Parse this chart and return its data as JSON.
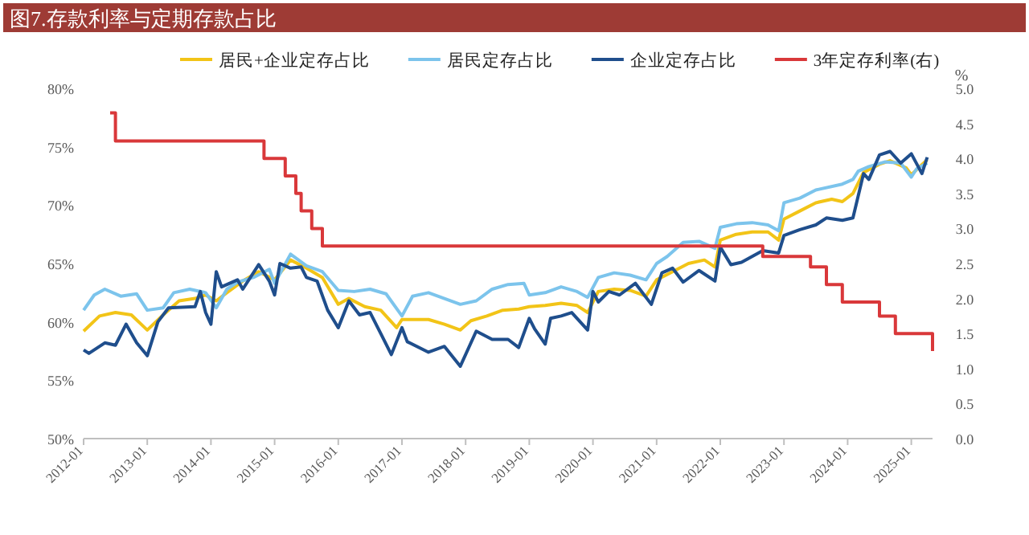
{
  "chart_data": {
    "type": "line",
    "title": "图7.存款利率与定期存款占比",
    "y2label": "%",
    "xlim": [
      "2012-01",
      "2025-05"
    ],
    "xticks": [
      "2012-01",
      "2013-01",
      "2014-01",
      "2015-01",
      "2016-01",
      "2017-01",
      "2018-01",
      "2019-01",
      "2020-01",
      "2021-01",
      "2022-01",
      "2023-01",
      "2024-01",
      "2025-01"
    ],
    "ylim": [
      50,
      80
    ],
    "yticks": [
      {
        "value": 50,
        "label": "50%"
      },
      {
        "value": 55,
        "label": "55%"
      },
      {
        "value": 60,
        "label": "60%"
      },
      {
        "value": 65,
        "label": "65%"
      },
      {
        "value": 70,
        "label": "70%"
      },
      {
        "value": 75,
        "label": "75%"
      },
      {
        "value": 80,
        "label": "80%"
      }
    ],
    "y2lim": [
      0,
      5
    ],
    "y2ticks": [
      {
        "value": 0,
        "label": "0.0"
      },
      {
        "value": 0.5,
        "label": "0.5"
      },
      {
        "value": 1,
        "label": "1.0"
      },
      {
        "value": 1.5,
        "label": "1.5"
      },
      {
        "value": 2,
        "label": "2.0"
      },
      {
        "value": 2.5,
        "label": "2.5"
      },
      {
        "value": 3,
        "label": "3.0"
      },
      {
        "value": 3.5,
        "label": "3.5"
      },
      {
        "value": 4,
        "label": "4.0"
      },
      {
        "value": 4.5,
        "label": "4.5"
      },
      {
        "value": 5,
        "label": "5.0"
      }
    ],
    "grid": false,
    "legend": "top",
    "line_style": "solid",
    "series": [
      {
        "name": "居民+企业定存占比",
        "color": "#f2c417",
        "x": [
          "2012-01",
          "2012-04",
          "2012-07",
          "2012-10",
          "2013-01",
          "2013-04",
          "2013-07",
          "2013-10",
          "2013-12",
          "2014-02",
          "2014-04",
          "2014-07",
          "2014-10",
          "2015-01",
          "2015-04",
          "2015-07",
          "2015-10",
          "2016-01",
          "2016-03",
          "2016-06",
          "2016-09",
          "2016-12",
          "2017-01",
          "2017-06",
          "2017-09",
          "2017-12",
          "2018-02",
          "2018-05",
          "2018-08",
          "2018-11",
          "2019-01",
          "2019-04",
          "2019-07",
          "2019-10",
          "2019-12",
          "2020-02",
          "2020-05",
          "2020-08",
          "2020-11",
          "2021-01",
          "2021-04",
          "2021-07",
          "2021-10",
          "2021-12",
          "2022-01",
          "2022-04",
          "2022-07",
          "2022-10",
          "2022-12",
          "2023-01",
          "2023-04",
          "2023-07",
          "2023-10",
          "2023-12",
          "2024-02",
          "2024-04",
          "2024-07",
          "2024-09",
          "2024-12",
          "2025-01",
          "2025-04"
        ],
        "values": [
          59.2,
          60.5,
          60.8,
          60.6,
          59.3,
          60.6,
          61.8,
          62.0,
          62.3,
          61.8,
          62.5,
          63.5,
          64.3,
          63.6,
          65.3,
          64.6,
          63.8,
          61.5,
          62.0,
          61.3,
          61.0,
          59.5,
          60.2,
          60.2,
          59.8,
          59.3,
          60.1,
          60.5,
          61.0,
          61.1,
          61.3,
          61.4,
          61.6,
          61.4,
          60.8,
          62.6,
          62.8,
          62.7,
          62.2,
          63.6,
          64.3,
          65.0,
          65.3,
          64.7,
          67.0,
          67.5,
          67.7,
          67.7,
          67.0,
          68.8,
          69.5,
          70.2,
          70.5,
          70.3,
          71.0,
          72.8,
          73.5,
          73.8,
          73.2,
          72.6,
          73.9
        ]
      },
      {
        "name": "居民定存占比",
        "color": "#7cc4ec",
        "x": [
          "2012-01",
          "2012-03",
          "2012-05",
          "2012-08",
          "2012-11",
          "2013-01",
          "2013-04",
          "2013-06",
          "2013-09",
          "2013-12",
          "2014-02",
          "2014-04",
          "2014-06",
          "2014-09",
          "2014-12",
          "2015-01",
          "2015-04",
          "2015-07",
          "2015-10",
          "2016-01",
          "2016-04",
          "2016-07",
          "2016-10",
          "2017-01",
          "2017-03",
          "2017-06",
          "2017-09",
          "2017-12",
          "2018-03",
          "2018-06",
          "2018-09",
          "2018-12",
          "2019-01",
          "2019-04",
          "2019-07",
          "2019-10",
          "2019-12",
          "2020-02",
          "2020-05",
          "2020-08",
          "2020-11",
          "2021-01",
          "2021-03",
          "2021-06",
          "2021-09",
          "2021-12",
          "2022-01",
          "2022-04",
          "2022-07",
          "2022-10",
          "2022-12",
          "2023-01",
          "2023-04",
          "2023-07",
          "2023-12",
          "2024-02",
          "2024-03",
          "2024-05",
          "2024-08",
          "2024-11",
          "2025-01",
          "2025-02",
          "2025-04"
        ],
        "values": [
          61.0,
          62.3,
          62.8,
          62.2,
          62.4,
          61.0,
          61.2,
          62.5,
          62.8,
          62.5,
          61.2,
          62.8,
          63.4,
          63.8,
          64.5,
          63.3,
          65.8,
          64.8,
          64.3,
          62.7,
          62.6,
          62.8,
          62.4,
          60.5,
          62.2,
          62.5,
          62.0,
          61.5,
          61.8,
          62.8,
          63.2,
          63.3,
          62.3,
          62.5,
          63.0,
          62.6,
          62.1,
          63.8,
          64.2,
          64.0,
          63.6,
          65.0,
          65.6,
          66.8,
          66.9,
          66.3,
          68.1,
          68.4,
          68.5,
          68.3,
          67.8,
          70.2,
          70.6,
          71.3,
          71.8,
          72.2,
          72.9,
          73.3,
          73.7,
          73.6,
          72.4,
          73.1,
          73.6
        ]
      },
      {
        "name": "企业定存占比",
        "color": "#1f4e8c",
        "x": [
          "2012-01",
          "2012-02",
          "2012-05",
          "2012-07",
          "2012-09",
          "2012-11",
          "2013-01",
          "2013-03",
          "2013-05",
          "2013-10",
          "2013-11",
          "2013-12",
          "2014-01",
          "2014-02",
          "2014-03",
          "2014-06",
          "2014-07",
          "2014-10",
          "2014-12",
          "2015-01",
          "2015-02",
          "2015-04",
          "2015-06",
          "2015-07",
          "2015-09",
          "2015-11",
          "2016-01",
          "2016-03",
          "2016-05",
          "2016-07",
          "2016-09",
          "2016-11",
          "2017-01",
          "2017-02",
          "2017-06",
          "2017-09",
          "2017-12",
          "2018-03",
          "2018-06",
          "2018-09",
          "2018-11",
          "2019-01",
          "2019-02",
          "2019-04",
          "2019-05",
          "2019-07",
          "2019-09",
          "2019-12",
          "2020-01",
          "2020-02",
          "2020-04",
          "2020-06",
          "2020-09",
          "2020-12",
          "2021-02",
          "2021-04",
          "2021-06",
          "2021-09",
          "2021-12",
          "2022-01",
          "2022-03",
          "2022-05",
          "2022-09",
          "2022-12",
          "2023-01",
          "2023-04",
          "2023-07",
          "2023-09",
          "2023-12",
          "2024-02",
          "2024-04",
          "2024-05",
          "2024-07",
          "2024-09",
          "2024-11",
          "2025-01",
          "2025-03",
          "2025-04"
        ],
        "values": [
          57.6,
          57.3,
          58.2,
          58.0,
          59.8,
          58.2,
          57.1,
          60.0,
          61.2,
          61.3,
          62.6,
          60.8,
          59.8,
          64.3,
          63.0,
          63.6,
          62.8,
          64.9,
          63.5,
          62.3,
          65.0,
          64.6,
          64.7,
          63.8,
          63.5,
          61.0,
          59.5,
          61.8,
          60.6,
          60.8,
          59.0,
          57.2,
          59.5,
          58.3,
          57.4,
          57.9,
          56.2,
          59.2,
          58.5,
          58.5,
          57.8,
          60.3,
          59.4,
          58.1,
          60.3,
          60.5,
          60.8,
          59.3,
          62.6,
          61.7,
          62.6,
          62.3,
          63.3,
          61.5,
          64.2,
          64.6,
          63.4,
          64.4,
          63.5,
          66.4,
          64.9,
          65.1,
          66.1,
          65.9,
          67.4,
          67.9,
          68.3,
          68.9,
          68.7,
          68.9,
          72.7,
          72.2,
          74.3,
          74.6,
          73.6,
          74.4,
          72.7,
          74.1
        ]
      },
      {
        "name": "3年定存利率(右)",
        "color": "#d9383a",
        "type": "step",
        "axis": "y2",
        "x": [
          "2012-06",
          "2012-07",
          "2014-11",
          "2015-03",
          "2015-05",
          "2015-06",
          "2015-08",
          "2015-10",
          "2022-09",
          "2023-06",
          "2023-09",
          "2023-12",
          "2024-07",
          "2024-10",
          "2025-05"
        ],
        "values": [
          4.65,
          4.25,
          4.0,
          3.75,
          3.5,
          3.25,
          3.0,
          2.75,
          2.6,
          2.45,
          2.2,
          1.95,
          1.75,
          1.5,
          1.25
        ]
      }
    ]
  }
}
